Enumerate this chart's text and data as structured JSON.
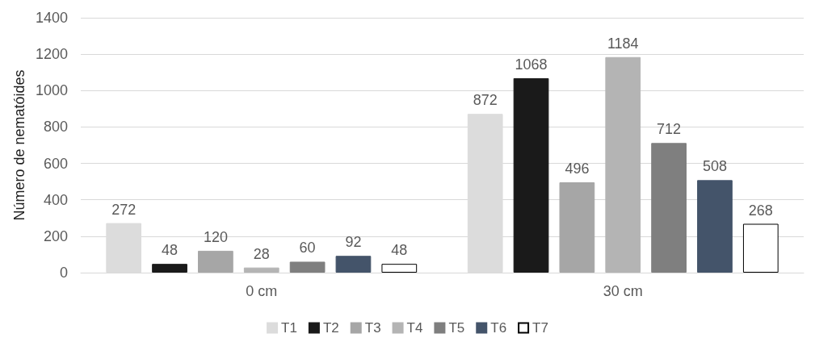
{
  "chart_data": {
    "type": "bar",
    "ylabel": "Número de nematóides",
    "categories": [
      "0 cm",
      "30 cm"
    ],
    "series": [
      {
        "name": "T1",
        "color": "#dcdcdc",
        "values": [
          272,
          872
        ]
      },
      {
        "name": "T2",
        "color": "#1a1a1a",
        "values": [
          48,
          1068
        ]
      },
      {
        "name": "T3",
        "color": "#a6a6a6",
        "values": [
          120,
          496
        ]
      },
      {
        "name": "T4",
        "color": "#b4b4b4",
        "values": [
          28,
          1184
        ]
      },
      {
        "name": "T5",
        "color": "#7f7f7f",
        "values": [
          60,
          712
        ]
      },
      {
        "name": "T6",
        "color": "#44546a",
        "values": [
          92,
          508
        ]
      },
      {
        "name": "T7",
        "color": "#ffffff",
        "values": [
          48,
          268
        ]
      }
    ],
    "ylim": [
      0,
      1400
    ],
    "yticks": [
      0,
      200,
      400,
      600,
      800,
      1000,
      1200,
      1400
    ],
    "grid": "y",
    "legend": "bottom",
    "data_labels": true
  }
}
